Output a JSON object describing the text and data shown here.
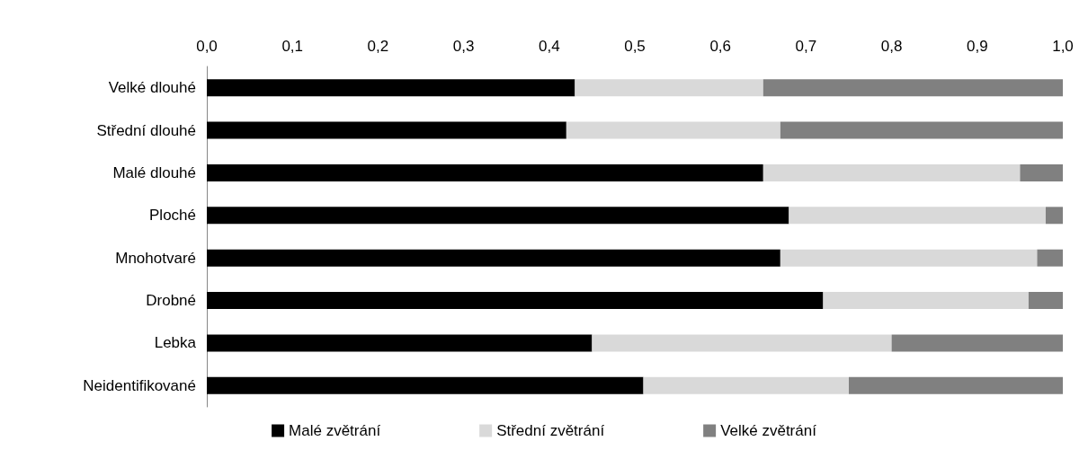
{
  "chart_data": {
    "type": "bar",
    "orientation": "horizontal",
    "stacked": true,
    "categories": [
      "Velké dlouhé",
      "Střední dlouhé",
      "Malé dlouhé",
      "Ploché",
      "Mnohotvaré",
      "Drobné",
      "Lebka",
      "Neidentifikované"
    ],
    "series": [
      {
        "name": "Malé zvětrání",
        "color": "#000000",
        "values": [
          0.43,
          0.42,
          0.65,
          0.68,
          0.67,
          0.72,
          0.45,
          0.51
        ]
      },
      {
        "name": "Střední zvětrání",
        "color": "#d9d9d9",
        "values": [
          0.22,
          0.25,
          0.3,
          0.3,
          0.3,
          0.24,
          0.35,
          0.24
        ]
      },
      {
        "name": "Velké zvětrání",
        "color": "#808080",
        "values": [
          0.35,
          0.33,
          0.05,
          0.02,
          0.03,
          0.04,
          0.2,
          0.25
        ]
      }
    ],
    "xlim": [
      0,
      1
    ],
    "xticks": [
      {
        "value": 0,
        "label": "0,0"
      },
      {
        "value": 0.1,
        "label": "0,1"
      },
      {
        "value": 0.2,
        "label": "0,2"
      },
      {
        "value": 0.3,
        "label": "0,3"
      },
      {
        "value": 0.4,
        "label": "0,4"
      },
      {
        "value": 0.5,
        "label": "0,5"
      },
      {
        "value": 0.6,
        "label": "0,6"
      },
      {
        "value": 0.7,
        "label": "0,7"
      },
      {
        "value": 0.8,
        "label": "0,8"
      },
      {
        "value": 0.9,
        "label": "0,9"
      },
      {
        "value": 1,
        "label": "1,0"
      }
    ],
    "grid": false,
    "legend": "bottom"
  }
}
